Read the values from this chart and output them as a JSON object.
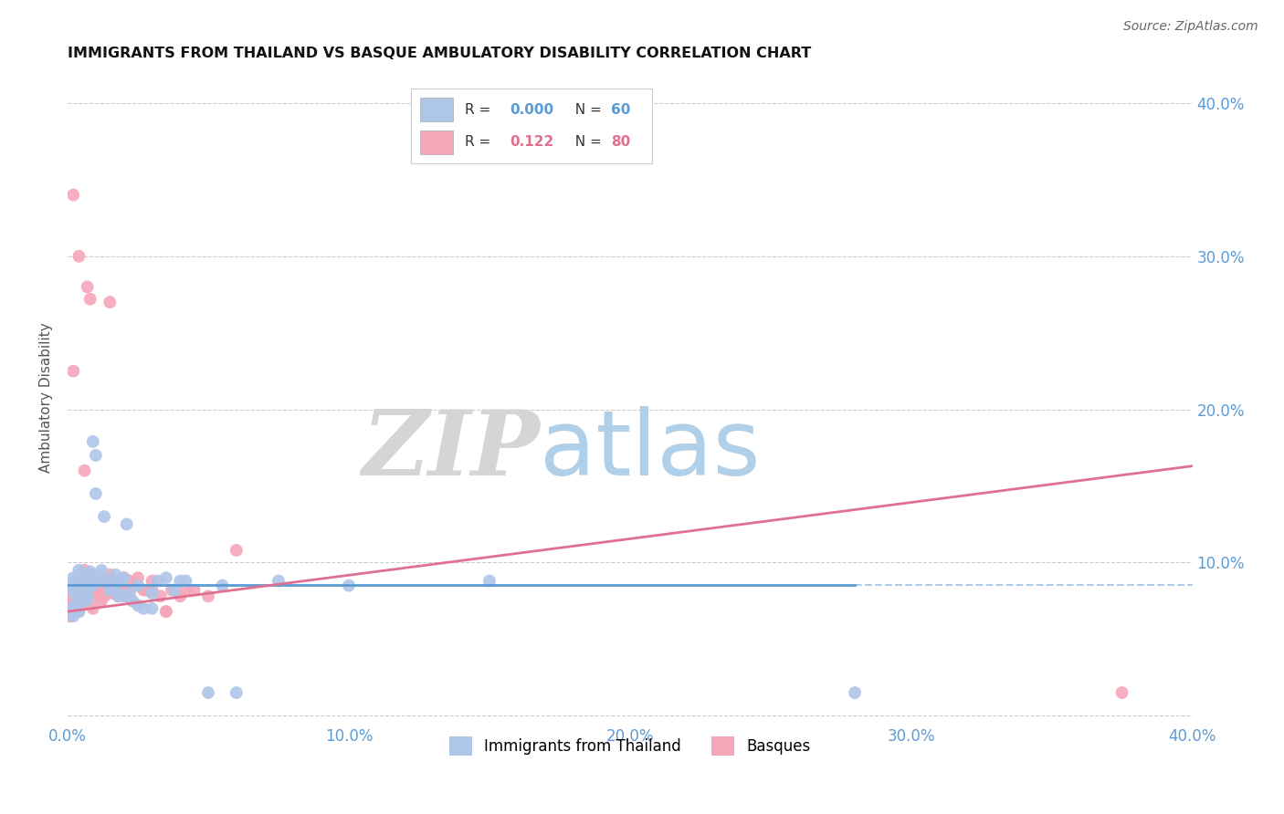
{
  "title": "IMMIGRANTS FROM THAILAND VS BASQUE AMBULATORY DISABILITY CORRELATION CHART",
  "source": "Source: ZipAtlas.com",
  "ylabel": "Ambulatory Disability",
  "xlim": [
    0.0,
    0.4
  ],
  "ylim": [
    -0.005,
    0.42
  ],
  "legend1_color": "#aec6e8",
  "legend2_color": "#f4a7b9",
  "line1_color": "#5b9bd5",
  "line2_color": "#e07090",
  "scatter1_color": "#aec6e8",
  "scatter2_color": "#f4a7b9",
  "background_color": "#ffffff",
  "grid_color": "#cccccc",
  "thai_x": [
    0.001,
    0.002,
    0.002,
    0.003,
    0.003,
    0.004,
    0.004,
    0.005,
    0.005,
    0.006,
    0.006,
    0.007,
    0.007,
    0.008,
    0.008,
    0.009,
    0.01,
    0.01,
    0.011,
    0.012,
    0.013,
    0.014,
    0.015,
    0.016,
    0.017,
    0.018,
    0.019,
    0.02,
    0.021,
    0.022,
    0.023,
    0.025,
    0.027,
    0.03,
    0.032,
    0.035,
    0.038,
    0.042,
    0.05,
    0.06,
    0.001,
    0.002,
    0.003,
    0.004,
    0.005,
    0.006,
    0.007,
    0.009,
    0.011,
    0.014,
    0.017,
    0.02,
    0.025,
    0.03,
    0.04,
    0.055,
    0.075,
    0.1,
    0.15,
    0.28
  ],
  "thai_y": [
    0.085,
    0.09,
    0.082,
    0.088,
    0.078,
    0.092,
    0.095,
    0.08,
    0.087,
    0.075,
    0.083,
    0.091,
    0.076,
    0.086,
    0.094,
    0.179,
    0.145,
    0.17,
    0.088,
    0.095,
    0.13,
    0.088,
    0.082,
    0.085,
    0.092,
    0.078,
    0.088,
    0.09,
    0.125,
    0.08,
    0.075,
    0.085,
    0.07,
    0.08,
    0.088,
    0.09,
    0.082,
    0.088,
    0.015,
    0.015,
    0.07,
    0.065,
    0.072,
    0.068,
    0.075,
    0.08,
    0.078,
    0.085,
    0.09,
    0.088,
    0.082,
    0.078,
    0.072,
    0.07,
    0.088,
    0.085,
    0.088,
    0.085,
    0.088,
    0.015
  ],
  "basque_x": [
    0.001,
    0.001,
    0.002,
    0.002,
    0.003,
    0.003,
    0.004,
    0.004,
    0.005,
    0.005,
    0.006,
    0.006,
    0.007,
    0.007,
    0.008,
    0.008,
    0.009,
    0.009,
    0.01,
    0.01,
    0.011,
    0.012,
    0.013,
    0.014,
    0.015,
    0.016,
    0.017,
    0.018,
    0.019,
    0.02,
    0.021,
    0.022,
    0.023,
    0.024,
    0.025,
    0.027,
    0.03,
    0.033,
    0.037,
    0.04,
    0.002,
    0.003,
    0.005,
    0.006,
    0.007,
    0.008,
    0.009,
    0.01,
    0.012,
    0.014,
    0.016,
    0.018,
    0.021,
    0.025,
    0.03,
    0.035,
    0.042,
    0.05,
    0.06,
    0.375,
    0.001,
    0.002,
    0.003,
    0.004,
    0.005,
    0.006,
    0.007,
    0.008,
    0.01,
    0.012,
    0.015,
    0.018,
    0.022,
    0.028,
    0.035,
    0.045,
    0.002,
    0.004,
    0.007,
    0.015
  ],
  "basque_y": [
    0.08,
    0.065,
    0.075,
    0.225,
    0.075,
    0.085,
    0.09,
    0.078,
    0.072,
    0.088,
    0.16,
    0.095,
    0.085,
    0.09,
    0.082,
    0.272,
    0.088,
    0.092,
    0.085,
    0.08,
    0.091,
    0.088,
    0.078,
    0.085,
    0.092,
    0.08,
    0.088,
    0.078,
    0.085,
    0.09,
    0.082,
    0.088,
    0.075,
    0.085,
    0.09,
    0.082,
    0.088,
    0.078,
    0.082,
    0.078,
    0.075,
    0.08,
    0.088,
    0.082,
    0.078,
    0.085,
    0.07,
    0.082,
    0.075,
    0.08,
    0.088,
    0.082,
    0.078,
    0.085,
    0.082,
    0.068,
    0.082,
    0.078,
    0.108,
    0.015,
    0.065,
    0.07,
    0.072,
    0.068,
    0.075,
    0.078,
    0.08,
    0.085,
    0.078,
    0.082,
    0.085,
    0.088,
    0.078,
    0.082,
    0.068,
    0.082,
    0.34,
    0.3,
    0.28,
    0.27
  ]
}
